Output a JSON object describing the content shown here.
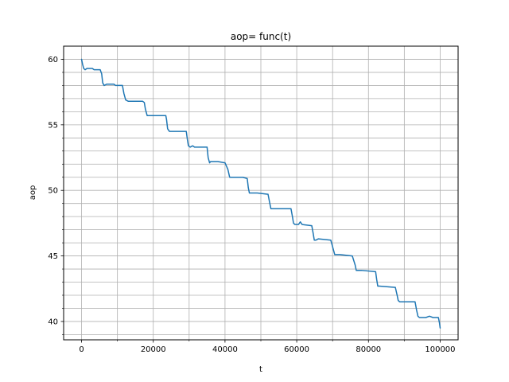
{
  "chart_data": {
    "type": "line",
    "title": "aop= func(t)",
    "xlabel": "t",
    "ylabel": "aop",
    "xlim": [
      -5000,
      105000
    ],
    "ylim": [
      38.6,
      61.0
    ],
    "grid": true,
    "grid_minor": true,
    "line_color": "#1f77b4",
    "x_ticks": [
      0,
      20000,
      40000,
      60000,
      80000,
      100000
    ],
    "x_tick_labels": [
      "0",
      "20000",
      "40000",
      "60000",
      "80000",
      "100000"
    ],
    "x_minor_ticks": [
      10000,
      30000,
      50000,
      70000,
      90000
    ],
    "y_ticks": [
      40,
      45,
      50,
      55,
      60
    ],
    "y_tick_labels": [
      "40",
      "45",
      "50",
      "55",
      "60"
    ],
    "y_minor_ticks": [
      39,
      41,
      42,
      43,
      44,
      46,
      47,
      48,
      49,
      51,
      52,
      53,
      54,
      56,
      57,
      58,
      59,
      60
    ],
    "series": [
      {
        "x": [
          0,
          300,
          600,
          1000,
          1500,
          2000,
          3000,
          3500,
          5200,
          5600,
          5900,
          6300,
          7000,
          9000,
          9500,
          11400,
          11800,
          12300,
          13000,
          15000,
          17000,
          17500,
          17800,
          18300,
          19000,
          23500,
          23700,
          24000,
          24500,
          29200,
          29500,
          29800,
          30300,
          31000,
          31500,
          32500,
          35000,
          35300,
          35700,
          36000,
          38000,
          40000,
          40800,
          41300,
          41600,
          42000,
          45000,
          46200,
          46500,
          46800,
          47200,
          49000,
          52000,
          52500,
          52800,
          53200,
          58400,
          58800,
          59100,
          59500,
          60500,
          61000,
          61500,
          64200,
          64600,
          64900,
          65300,
          66000,
          69500,
          70300,
          70600,
          71000,
          71500,
          72000,
          75500,
          76300,
          76600,
          77000,
          77500,
          78000,
          82000,
          82300,
          82600,
          83000,
          87500,
          88000,
          88300,
          88700,
          89200,
          93000,
          93400,
          93800,
          94200,
          96000,
          97000,
          98000,
          99500,
          99800,
          100000
        ],
        "y": [
          60.0,
          59.6,
          59.3,
          59.2,
          59.3,
          59.3,
          59.3,
          59.2,
          59.2,
          58.9,
          58.2,
          58.0,
          58.1,
          58.1,
          58.0,
          58.0,
          57.4,
          56.9,
          56.8,
          56.8,
          56.8,
          56.7,
          56.2,
          55.7,
          55.7,
          55.7,
          55.4,
          54.7,
          54.5,
          54.5,
          53.9,
          53.4,
          53.3,
          53.4,
          53.3,
          53.3,
          53.3,
          52.5,
          52.1,
          52.2,
          52.2,
          52.1,
          51.6,
          51.0,
          51.0,
          51.0,
          51.0,
          50.9,
          50.2,
          49.8,
          49.8,
          49.8,
          49.7,
          49.0,
          48.6,
          48.6,
          48.6,
          48.0,
          47.5,
          47.4,
          47.4,
          47.6,
          47.4,
          47.3,
          46.7,
          46.2,
          46.2,
          46.3,
          46.2,
          45.4,
          45.1,
          45.1,
          45.1,
          45.1,
          45.0,
          44.3,
          43.9,
          43.9,
          43.9,
          43.9,
          43.8,
          43.2,
          42.7,
          42.7,
          42.6,
          42.0,
          41.6,
          41.5,
          41.5,
          41.5,
          40.9,
          40.4,
          40.3,
          40.3,
          40.4,
          40.3,
          40.3,
          39.9,
          39.5
        ]
      }
    ]
  }
}
